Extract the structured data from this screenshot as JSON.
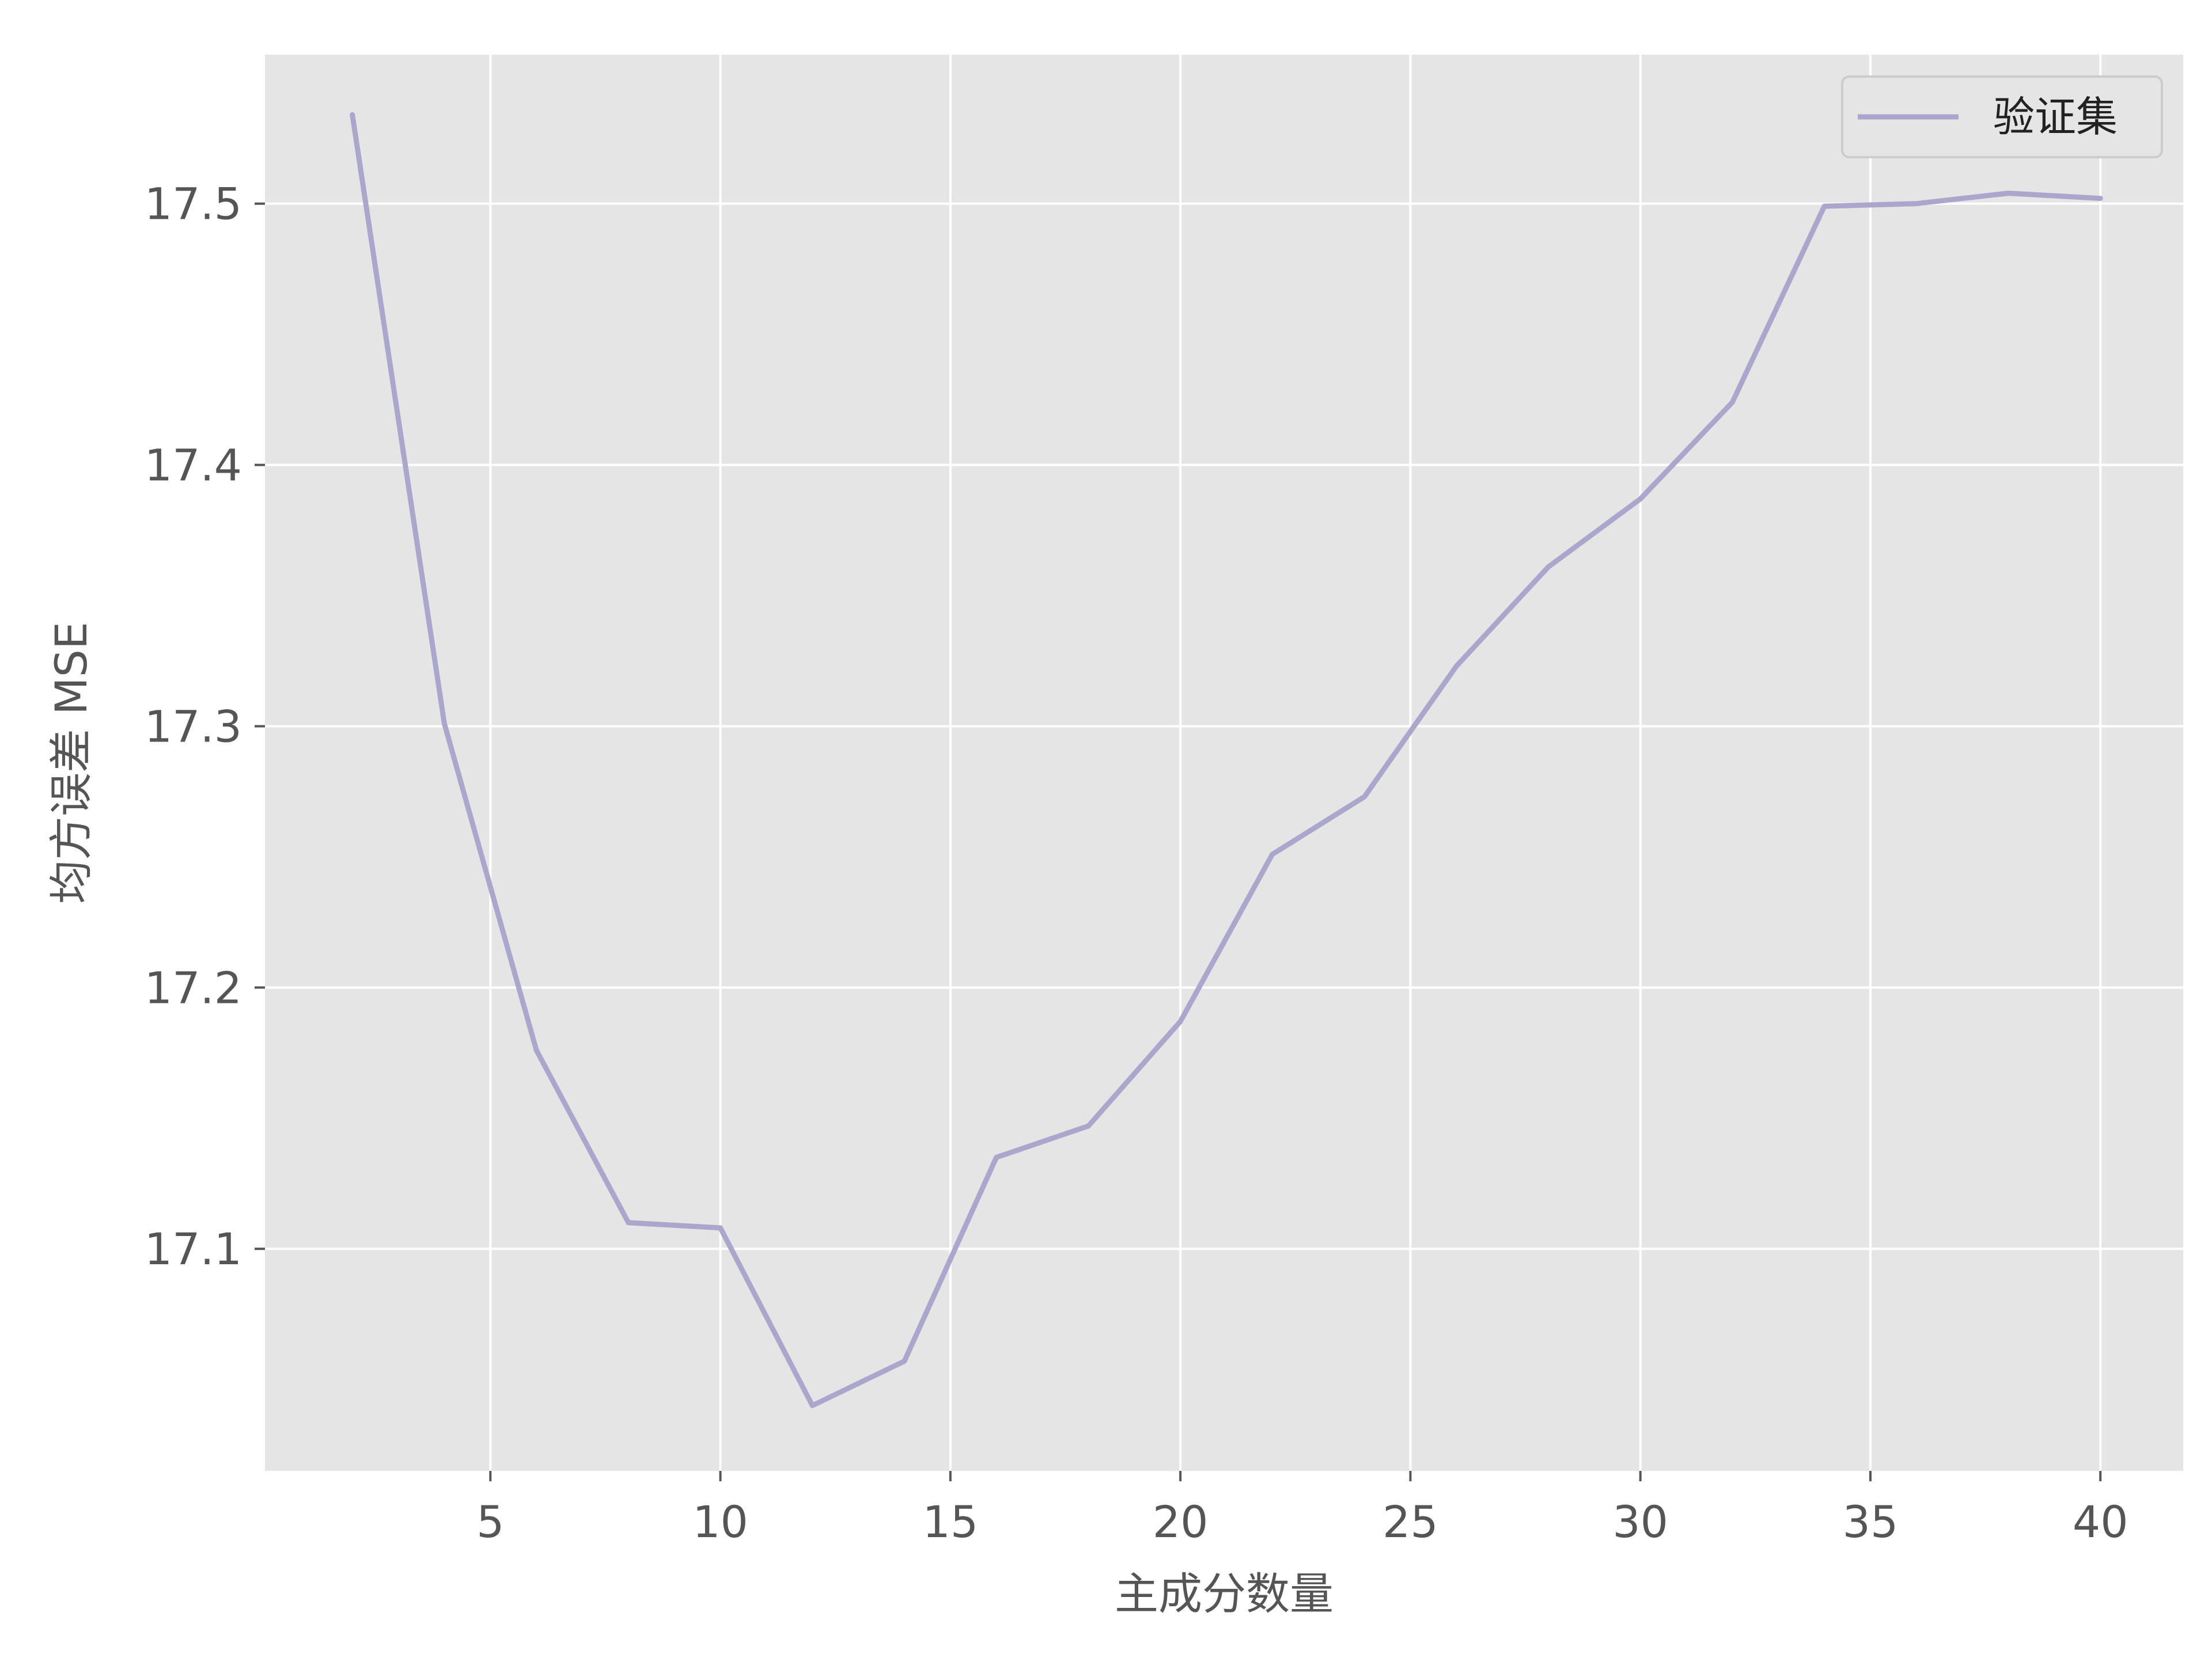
{
  "chart_data": {
    "type": "line",
    "title": "",
    "xlabel": "主成分数量",
    "ylabel": "均方误差 MSE",
    "xlim": [
      0.1,
      41.8
    ],
    "ylim": [
      17.015,
      17.557
    ],
    "xticks": [
      5,
      10,
      15,
      20,
      25,
      30,
      35,
      40
    ],
    "yticks": [
      17.1,
      17.2,
      17.3,
      17.4,
      17.5
    ],
    "ytick_labels": [
      "17.1",
      "17.2",
      "17.3",
      "17.4",
      "17.5"
    ],
    "grid": true,
    "legend_position": "top-right",
    "style": {
      "background": "#E5E5E5",
      "grid_color": "#FFFFFF",
      "line_color": "#ABA6CC"
    },
    "series": [
      {
        "name": "验证集",
        "x": [
          2,
          4,
          6,
          8,
          10,
          12,
          14,
          16,
          18,
          20,
          22,
          24,
          26,
          28,
          30,
          32,
          34,
          36,
          38,
          40
        ],
        "values": [
          17.534,
          17.301,
          17.176,
          17.11,
          17.108,
          17.04,
          17.057,
          17.135,
          17.147,
          17.187,
          17.251,
          17.273,
          17.323,
          17.361,
          17.387,
          17.424,
          17.499,
          17.5,
          17.504,
          17.502
        ]
      }
    ]
  }
}
